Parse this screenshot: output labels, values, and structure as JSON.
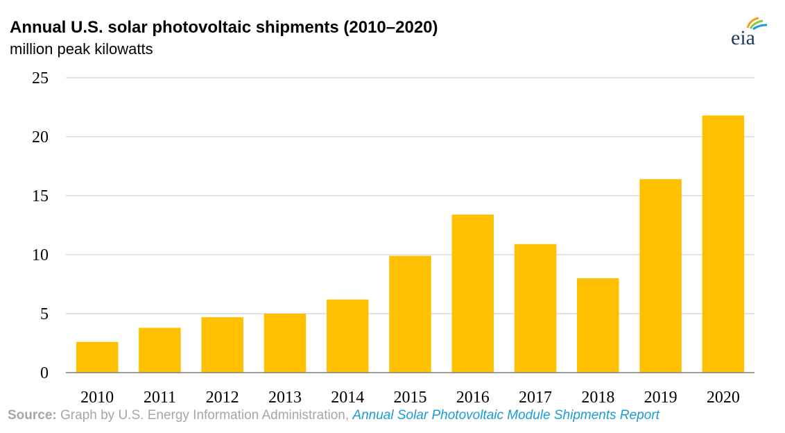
{
  "header": {
    "title": "Annual U.S. solar photovoltaic shipments (2010–2020)",
    "subtitle": "million peak kilowatts"
  },
  "logo": {
    "text": "eia",
    "icon": "eia-logo-icon"
  },
  "source": {
    "label": "Source:",
    "text": "Graph by U.S. Energy Information Administration,",
    "link": "Annual Solar Photovoltaic Module Shipments Report"
  },
  "colors": {
    "bar": "#FFC000",
    "grid": "#d9d9d9",
    "axis": "#7f7f7f"
  },
  "chart_data": {
    "type": "bar",
    "title": "Annual U.S. solar photovoltaic shipments (2010–2020)",
    "ylabel": "million peak kilowatts",
    "xlabel": "",
    "categories": [
      "2010",
      "2011",
      "2012",
      "2013",
      "2014",
      "2015",
      "2016",
      "2017",
      "2018",
      "2019",
      "2020"
    ],
    "values": [
      2.6,
      3.8,
      4.7,
      5.0,
      6.2,
      9.9,
      13.4,
      10.9,
      8.0,
      16.4,
      21.8
    ],
    "ylim": [
      0,
      25
    ],
    "yticks": [
      0,
      5,
      10,
      15,
      20,
      25
    ],
    "grid": true,
    "legend": "none"
  }
}
